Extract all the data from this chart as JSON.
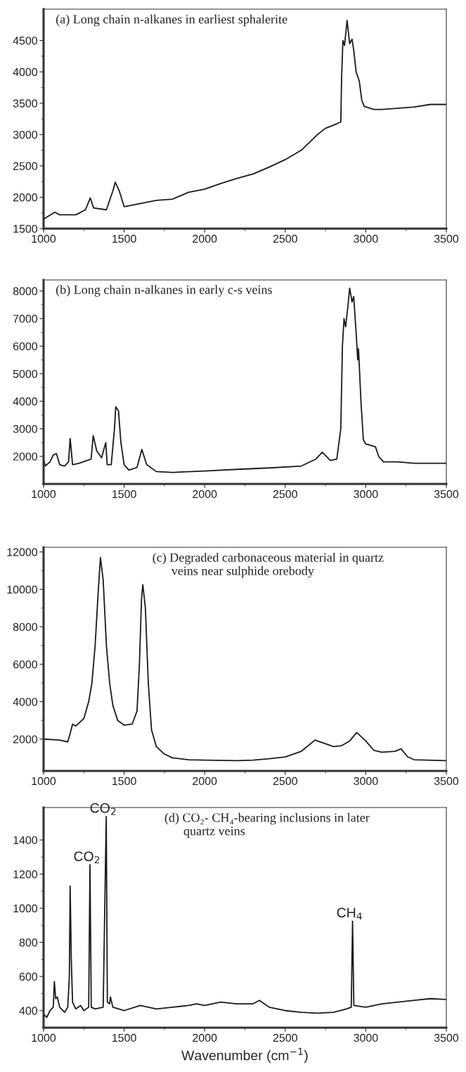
{
  "chart_data": [
    {
      "type": "line",
      "title": "(a) Long chain n-alkanes in earliest sphalerite",
      "xlim": [
        1000,
        3500
      ],
      "ylim": [
        1500,
        5000
      ],
      "xticks": [
        1000,
        1500,
        2000,
        2500,
        3000,
        3500
      ],
      "yticks": [
        1500,
        2000,
        2500,
        3000,
        3500,
        4000,
        4500
      ],
      "grid": false,
      "series": [
        {
          "color": "#1a1a1a",
          "x": [
            1000,
            1030,
            1070,
            1100,
            1200,
            1260,
            1290,
            1310,
            1390,
            1430,
            1445,
            1470,
            1500,
            1600,
            1700,
            1800,
            1900,
            2000,
            2100,
            2200,
            2300,
            2400,
            2500,
            2600,
            2700,
            2750,
            2800,
            2845,
            2850,
            2858,
            2868,
            2884,
            2900,
            2915,
            2925,
            2940,
            2960,
            2975,
            2990,
            3050,
            3100,
            3200,
            3300,
            3400,
            3500
          ],
          "values": [
            1650,
            1700,
            1760,
            1720,
            1720,
            1800,
            1990,
            1830,
            1800,
            2100,
            2240,
            2100,
            1850,
            1900,
            1950,
            1970,
            2080,
            2130,
            2220,
            2300,
            2370,
            2480,
            2600,
            2750,
            3000,
            3100,
            3150,
            3200,
            3900,
            4500,
            4420,
            4820,
            4450,
            4520,
            4350,
            4000,
            3850,
            3550,
            3450,
            3400,
            3400,
            3420,
            3440,
            3480,
            3480
          ]
        }
      ]
    },
    {
      "type": "line",
      "title": "(b) Long chain n-alkanes in early c-s veins",
      "xlim": [
        1000,
        3500
      ],
      "ylim": [
        1000,
        8400
      ],
      "xticks": [
        1000,
        1500,
        2000,
        2500,
        3000,
        3500
      ],
      "yticks": [
        2000,
        3000,
        4000,
        5000,
        6000,
        7000,
        8000
      ],
      "grid": false,
      "series": [
        {
          "color": "#1a1a1a",
          "x": [
            1000,
            1010,
            1040,
            1060,
            1080,
            1100,
            1130,
            1155,
            1165,
            1180,
            1220,
            1270,
            1295,
            1308,
            1330,
            1360,
            1386,
            1395,
            1420,
            1440,
            1448,
            1465,
            1480,
            1500,
            1530,
            1580,
            1610,
            1640,
            1700,
            1800,
            2000,
            2200,
            2400,
            2600,
            2690,
            2730,
            2780,
            2820,
            2845,
            2855,
            2865,
            2875,
            2890,
            2900,
            2915,
            2925,
            2940,
            2950,
            2955,
            2970,
            2985,
            3000,
            3060,
            3080,
            3110,
            3200,
            3300,
            3400,
            3500
          ],
          "values": [
            1900,
            1650,
            1800,
            2050,
            2100,
            1700,
            1650,
            1800,
            2650,
            1700,
            1750,
            1850,
            1900,
            2750,
            2200,
            1950,
            2500,
            1700,
            1700,
            3000,
            3800,
            3650,
            2500,
            1700,
            1500,
            1600,
            2250,
            1700,
            1450,
            1420,
            1470,
            1530,
            1580,
            1650,
            1900,
            2150,
            1850,
            1900,
            3000,
            6000,
            7000,
            6700,
            7500,
            8100,
            7600,
            7800,
            6500,
            5500,
            5900,
            4000,
            2600,
            2450,
            2350,
            2000,
            1800,
            1800,
            1750,
            1750,
            1750
          ]
        }
      ]
    },
    {
      "type": "line",
      "title": "(c) Degraded carbonaceous material in quartz\n      veins near sulphide orebody",
      "xlim": [
        1000,
        3500
      ],
      "ylim": [
        300,
        12250
      ],
      "xticks": [
        1000,
        1500,
        2000,
        2500,
        3000,
        3500
      ],
      "yticks": [
        2000,
        4000,
        6000,
        8000,
        10000,
        12000
      ],
      "grid": false,
      "series": [
        {
          "color": "#1a1a1a",
          "x": [
            1000,
            1100,
            1150,
            1165,
            1180,
            1200,
            1250,
            1280,
            1300,
            1320,
            1340,
            1353,
            1370,
            1390,
            1410,
            1430,
            1460,
            1500,
            1550,
            1580,
            1595,
            1608,
            1616,
            1632,
            1650,
            1670,
            1700,
            1750,
            1800,
            1900,
            2000,
            2200,
            2300,
            2400,
            2500,
            2600,
            2685,
            2750,
            2800,
            2850,
            2900,
            2944,
            3000,
            3050,
            3100,
            3180,
            3219,
            3260,
            3300,
            3500
          ],
          "values": [
            2000,
            1950,
            1850,
            2300,
            2800,
            2700,
            3100,
            4000,
            5000,
            7000,
            10000,
            11700,
            10500,
            7000,
            5000,
            3800,
            3000,
            2750,
            2800,
            3500,
            6000,
            9500,
            10250,
            9000,
            5000,
            2500,
            1600,
            1200,
            1000,
            900,
            880,
            850,
            880,
            950,
            1050,
            1350,
            1950,
            1750,
            1600,
            1650,
            1900,
            2350,
            1900,
            1400,
            1300,
            1350,
            1480,
            1050,
            900,
            850
          ]
        }
      ]
    },
    {
      "type": "line",
      "title": "(d) CO₂- CH₄-bearing inclusions in later\n      quartz veins",
      "xlabel": "Wavenumber (cm$^{−1}$)",
      "xlim": [
        1000,
        3500
      ],
      "ylim": [
        300,
        1590
      ],
      "xticks": [
        1000,
        1500,
        2000,
        2500,
        3000,
        3500
      ],
      "yticks": [
        400,
        600,
        800,
        1000,
        1200,
        1400
      ],
      "grid": false,
      "annotations": [
        {
          "text": "CO$_{2}$",
          "x": 1288,
          "y": 1254
        },
        {
          "text": "CO$_{2}$",
          "x": 1389,
          "y": 1537
        },
        {
          "text": "CH$_{4}$",
          "x": 2918,
          "y": 924
        }
      ],
      "series": [
        {
          "color": "#1a1a1a",
          "x": [
            1000,
            1020,
            1040,
            1060,
            1067,
            1075,
            1085,
            1100,
            1130,
            1150,
            1160,
            1165,
            1172,
            1180,
            1200,
            1230,
            1250,
            1280,
            1288,
            1296,
            1320,
            1370,
            1389,
            1396,
            1410,
            1415,
            1430,
            1500,
            1600,
            1700,
            1800,
            1900,
            1950,
            2000,
            2100,
            2200,
            2300,
            2340,
            2400,
            2500,
            2600,
            2700,
            2800,
            2880,
            2910,
            2918,
            2926,
            3000,
            3100,
            3200,
            3300,
            3400,
            3500
          ],
          "values": [
            380,
            360,
            400,
            420,
            570,
            470,
            480,
            420,
            390,
            420,
            600,
            1130,
            700,
            450,
            410,
            430,
            400,
            420,
            1254,
            420,
            410,
            420,
            1537,
            450,
            440,
            480,
            420,
            400,
            430,
            410,
            420,
            430,
            440,
            430,
            450,
            440,
            440,
            460,
            420,
            400,
            390,
            385,
            390,
            410,
            420,
            924,
            430,
            420,
            440,
            450,
            460,
            470,
            465
          ]
        }
      ]
    }
  ]
}
